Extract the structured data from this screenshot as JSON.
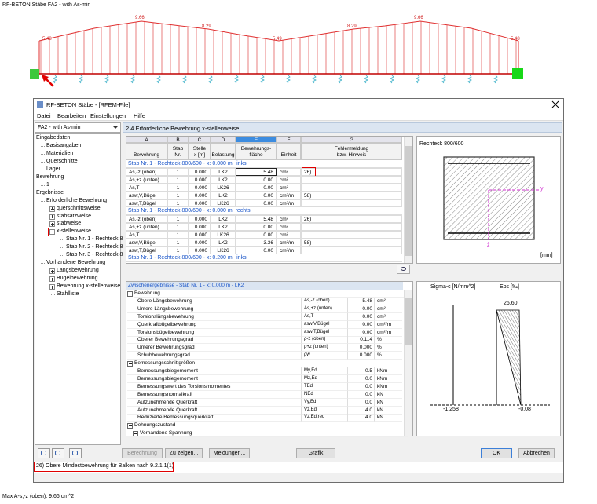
{
  "window_title": "RF-BETON Stäbe FA2 - with As-min",
  "beam_labels": [
    "5.48",
    "9.66",
    "8.29",
    "5.49",
    "8.29",
    "9.66",
    "5.48"
  ],
  "status_text": "Max A-s,-z (oben): 9.66 cm^2",
  "dialog": {
    "title": "RF-BETON Stäbe - [RFEM-File]",
    "menu": [
      "Datei",
      "Bearbeiten",
      "Einstellungen",
      "Hilfe"
    ],
    "case": "FA2 - with As-min",
    "tree": [
      "Eingabedaten",
      "Basisangaben",
      "Materialien",
      "Querschnitte",
      "Lager",
      "Bewehrung",
      "1",
      "Ergebnisse",
      "Erforderliche Bewehrung",
      "querschnittsweise",
      "stabsatzweise",
      "stabweise",
      "x-stellenweise",
      "Stab Nr. 1 - Rechteck 8",
      "Stab Nr. 2 - Rechteck 8",
      "Stab Nr. 3 - Rechteck 8",
      "Vorhandene Bewehrung",
      "Längsbewehrung",
      "Bügelbewehrung",
      "Bewehrung x-stellenweise",
      "Stahlliste"
    ],
    "section_title": "2.4 Erforderliche Bewehrung x-stellenweise",
    "table": {
      "columns": [
        "A",
        "B",
        "C",
        "D",
        "E",
        "F",
        "G"
      ],
      "headers": [
        [
          "Bewehrung"
        ],
        [
          "Stab",
          "Nr."
        ],
        [
          "Stelle",
          "x [m]"
        ],
        [
          "Belastung"
        ],
        [
          "Bewehrungs-",
          "fläche"
        ],
        [
          "Einheit"
        ],
        [
          "Fehlermeldung",
          "bzw. Hinweis"
        ]
      ],
      "rows": [
        {
          "group": "Stab Nr. 1 - Rechteck 800/600 - x: 0.000 m, links"
        },
        {
          "cells": [
            "As,-z (oben)",
            "1",
            "0.000",
            "LK2",
            "5.48",
            "cm²",
            "26)"
          ]
        },
        {
          "cells": [
            "As,+z (unten)",
            "1",
            "0.000",
            "LK2",
            "0.00",
            "cm²"
          ]
        },
        {
          "cells": [
            "As,T",
            "1",
            "0.000",
            "LK26",
            "0.00",
            "cm²"
          ]
        },
        {
          "cells": [
            "asw,V,Bügel",
            "1",
            "0.000",
            "LK2",
            "0.00",
            "cm²/m",
            "58)"
          ]
        },
        {
          "cells": [
            "asw,T,Bügel",
            "1",
            "0.000",
            "LK26",
            "0.00",
            "cm²/m"
          ]
        },
        {
          "group": "Stab Nr. 1 - Rechteck 800/600 - x: 0.000 m, rechts"
        },
        {
          "cells": [
            "As,-z (oben)",
            "1",
            "0.000",
            "LK2",
            "5.48",
            "cm²",
            "26)"
          ]
        },
        {
          "cells": [
            "As,+z (unten)",
            "1",
            "0.000",
            "LK2",
            "0.00",
            "cm²"
          ]
        },
        {
          "cells": [
            "As,T",
            "1",
            "0.000",
            "LK26",
            "0.00",
            "cm²"
          ]
        },
        {
          "cells": [
            "asw,V,Bügel",
            "1",
            "0.000",
            "LK2",
            "3.36",
            "cm²/m",
            "58)"
          ]
        },
        {
          "cells": [
            "asw,T,Bügel",
            "1",
            "0.000",
            "LK26",
            "0.00",
            "cm²/m"
          ]
        },
        {
          "group": "Stab Nr. 1 - Rechteck 800/600 - x: 0.200 m, links"
        }
      ]
    },
    "section_view": {
      "title": "Rechteck 800/600",
      "axis_y": "y",
      "axis_z": "z",
      "unit": "[mm]"
    },
    "details": {
      "title": "Zwischenergebnisse - Stab Nr. 1 - x: 0.000 m - LK2",
      "rows": [
        {
          "section": "Bewehrung"
        },
        {
          "cells": [
            "Obere Längsbewehrung",
            "As,-z (oben)",
            "5.48",
            "cm²"
          ]
        },
        {
          "cells": [
            "Untere Längsbewehrung",
            "As,+z (unten)",
            "0.00",
            "cm²"
          ]
        },
        {
          "cells": [
            "Torsionslängsbewehrung",
            "As,T",
            "0.00",
            "cm²"
          ]
        },
        {
          "cells": [
            "Querkraftbügelbewehrung",
            "asw,V,Bügel",
            "0.00",
            "cm²/m"
          ]
        },
        {
          "cells": [
            "Torsionsbügelbewehrung",
            "asw,T,Bügel",
            "0.00",
            "cm²/m"
          ]
        },
        {
          "cells": [
            "Oberer Bewehrungsgrad",
            "ρ-z (oben)",
            "0.114",
            "%"
          ]
        },
        {
          "cells": [
            "Unterer Bewehrungsgrad",
            "ρ+z (unten)",
            "0.000",
            "%"
          ]
        },
        {
          "cells": [
            "Schubbewehrungsgrad",
            "ρw",
            "0.000",
            "%"
          ]
        },
        {
          "section": "Bemessungsschnittgrößen"
        },
        {
          "cells": [
            "Bemessungsbiegemoment",
            "My,Ed",
            "-0.5",
            "kNm"
          ]
        },
        {
          "cells": [
            "Bemessungsbiegemoment",
            "Mz,Ed",
            "0.0",
            "kNm"
          ]
        },
        {
          "cells": [
            "Bemessungswert des Torsionsmomentes",
            "TEd",
            "0.0",
            "kNm"
          ]
        },
        {
          "cells": [
            "Bemessungsnormalkraft",
            "NEd",
            "0.0",
            "kN"
          ]
        },
        {
          "cells": [
            "Aufzunehmende Querkraft",
            "Vy,Ed",
            "0.0",
            "kN"
          ]
        },
        {
          "cells": [
            "Aufzunehmende Querkraft",
            "Vz,Ed",
            "4.0",
            "kN"
          ]
        },
        {
          "cells": [
            "Reduzierte Bemessungsquerkraft",
            "Vz,Ed,red",
            "4.0",
            "kN"
          ]
        },
        {
          "section": "Dehnungszustand"
        },
        {
          "subsection": "Vorhandene Spannung"
        }
      ]
    },
    "stress_view": {
      "sigma_label": "Sigma-c [N/mm^2]",
      "eps_label": "Eps [‰]",
      "top_value": "26.60",
      "bottom_left": "-1.258",
      "bottom_right": "-0.08"
    },
    "buttons": {
      "calculate": "Berechnung",
      "show": "Zu zeigen...",
      "messages": "Meldungen...",
      "graphic": "Grafik",
      "ok": "OK",
      "cancel": "Abbrechen"
    },
    "message": "26) Obere Mindestbewehrung für Balken nach 9.2.1.1(1)"
  }
}
